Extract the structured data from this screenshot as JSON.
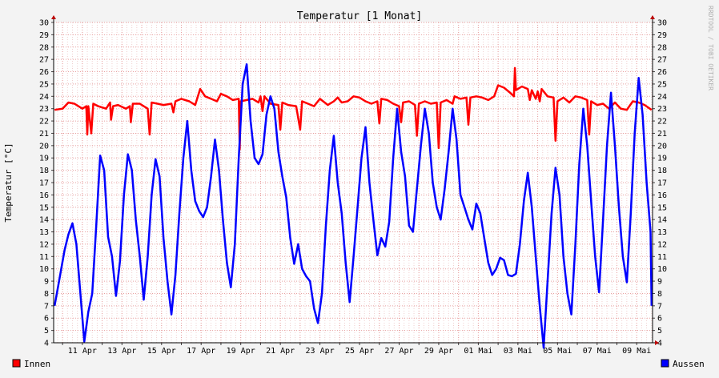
{
  "chart_data": {
    "type": "line",
    "title": "Temperatur [1 Monat]",
    "ylabel": "Temperatur [°C]",
    "xlabel": "",
    "ylim": [
      4,
      30
    ],
    "yticks": [
      4,
      5,
      6,
      7,
      8,
      9,
      10,
      11,
      12,
      13,
      14,
      15,
      16,
      17,
      18,
      19,
      20,
      21,
      22,
      23,
      24,
      25,
      26,
      27,
      28,
      29,
      30
    ],
    "xlim": [
      9.55,
      39.8
    ],
    "xticks": [
      {
        "x": 11,
        "label": "11 Apr"
      },
      {
        "x": 13,
        "label": "13 Apr"
      },
      {
        "x": 15,
        "label": "15 Apr"
      },
      {
        "x": 17,
        "label": "17 Apr"
      },
      {
        "x": 19,
        "label": "19 Apr"
      },
      {
        "x": 21,
        "label": "21 Apr"
      },
      {
        "x": 23,
        "label": "23 Apr"
      },
      {
        "x": 25,
        "label": "25 Apr"
      },
      {
        "x": 27,
        "label": "27 Apr"
      },
      {
        "x": 29,
        "label": "29 Apr"
      },
      {
        "x": 31,
        "label": "01 Mai"
      },
      {
        "x": 33,
        "label": "03 Mai"
      },
      {
        "x": 35,
        "label": "05 Mai"
      },
      {
        "x": 37,
        "label": "07 Mai"
      },
      {
        "x": 39,
        "label": "09 Mai"
      }
    ],
    "grid": true,
    "legend_position": "bottom",
    "credit": "RRDTOOL / TOBI OETIKER",
    "colors": {
      "background": "#f3f3f3",
      "plot": "#ffffff",
      "grid": "#e8a0a0",
      "innen": "#ff0000",
      "aussen": "#0000ff"
    },
    "series": [
      {
        "name": "Innen",
        "color": "#ff0000",
        "points": [
          [
            9.6,
            22.9
          ],
          [
            10.0,
            23.0
          ],
          [
            10.3,
            23.5
          ],
          [
            10.6,
            23.4
          ],
          [
            11.0,
            23.0
          ],
          [
            11.2,
            23.2
          ],
          [
            11.25,
            20.9
          ],
          [
            11.3,
            23.2
          ],
          [
            11.45,
            21.0
          ],
          [
            11.55,
            23.4
          ],
          [
            11.8,
            23.2
          ],
          [
            12.2,
            23.0
          ],
          [
            12.4,
            23.5
          ],
          [
            12.45,
            22.1
          ],
          [
            12.55,
            23.2
          ],
          [
            12.8,
            23.3
          ],
          [
            13.2,
            23.0
          ],
          [
            13.4,
            23.2
          ],
          [
            13.45,
            21.9
          ],
          [
            13.55,
            23.4
          ],
          [
            13.9,
            23.4
          ],
          [
            14.3,
            23.0
          ],
          [
            14.4,
            20.9
          ],
          [
            14.5,
            23.5
          ],
          [
            14.8,
            23.4
          ],
          [
            15.1,
            23.3
          ],
          [
            15.5,
            23.4
          ],
          [
            15.6,
            22.7
          ],
          [
            15.7,
            23.6
          ],
          [
            16.0,
            23.8
          ],
          [
            16.4,
            23.6
          ],
          [
            16.7,
            23.3
          ],
          [
            16.95,
            24.6
          ],
          [
            17.2,
            24.0
          ],
          [
            17.5,
            23.8
          ],
          [
            17.8,
            23.6
          ],
          [
            18.0,
            24.2
          ],
          [
            18.3,
            24.0
          ],
          [
            18.6,
            23.7
          ],
          [
            18.9,
            23.8
          ],
          [
            18.95,
            19.7
          ],
          [
            19.0,
            23.6
          ],
          [
            19.3,
            23.7
          ],
          [
            19.6,
            23.8
          ],
          [
            19.9,
            23.5
          ],
          [
            20.0,
            24.0
          ],
          [
            20.1,
            22.8
          ],
          [
            20.2,
            24.0
          ],
          [
            20.5,
            23.4
          ],
          [
            20.9,
            23.3
          ],
          [
            21.0,
            21.3
          ],
          [
            21.1,
            23.5
          ],
          [
            21.4,
            23.3
          ],
          [
            21.8,
            23.2
          ],
          [
            22.0,
            21.3
          ],
          [
            22.1,
            23.6
          ],
          [
            22.4,
            23.4
          ],
          [
            22.7,
            23.2
          ],
          [
            23.0,
            23.8
          ],
          [
            23.4,
            23.3
          ],
          [
            23.7,
            23.6
          ],
          [
            23.9,
            23.9
          ],
          [
            24.1,
            23.5
          ],
          [
            24.4,
            23.6
          ],
          [
            24.7,
            24.0
          ],
          [
            25.0,
            23.9
          ],
          [
            25.3,
            23.6
          ],
          [
            25.6,
            23.4
          ],
          [
            25.9,
            23.6
          ],
          [
            26.0,
            21.8
          ],
          [
            26.1,
            23.8
          ],
          [
            26.4,
            23.7
          ],
          [
            26.7,
            23.4
          ],
          [
            27.0,
            23.2
          ],
          [
            27.1,
            21.9
          ],
          [
            27.2,
            23.5
          ],
          [
            27.5,
            23.6
          ],
          [
            27.8,
            23.3
          ],
          [
            27.9,
            20.8
          ],
          [
            28.0,
            23.4
          ],
          [
            28.3,
            23.6
          ],
          [
            28.6,
            23.4
          ],
          [
            28.9,
            23.5
          ],
          [
            29.0,
            19.8
          ],
          [
            29.1,
            23.5
          ],
          [
            29.4,
            23.7
          ],
          [
            29.7,
            23.4
          ],
          [
            29.8,
            24.0
          ],
          [
            30.1,
            23.8
          ],
          [
            30.4,
            23.9
          ],
          [
            30.5,
            21.7
          ],
          [
            30.6,
            23.9
          ],
          [
            30.9,
            24.0
          ],
          [
            31.2,
            23.9
          ],
          [
            31.5,
            23.7
          ],
          [
            31.8,
            24.0
          ],
          [
            32.0,
            24.9
          ],
          [
            32.3,
            24.7
          ],
          [
            32.6,
            24.3
          ],
          [
            32.8,
            24.0
          ],
          [
            32.85,
            26.3
          ],
          [
            32.9,
            24.5
          ],
          [
            33.2,
            24.8
          ],
          [
            33.5,
            24.6
          ],
          [
            33.6,
            23.7
          ],
          [
            33.7,
            24.5
          ],
          [
            33.9,
            23.8
          ],
          [
            34.0,
            24.4
          ],
          [
            34.1,
            23.6
          ],
          [
            34.2,
            24.6
          ],
          [
            34.5,
            24.0
          ],
          [
            34.8,
            23.9
          ],
          [
            34.9,
            20.4
          ],
          [
            35.0,
            23.6
          ],
          [
            35.3,
            23.9
          ],
          [
            35.6,
            23.5
          ],
          [
            35.9,
            24.0
          ],
          [
            36.2,
            23.9
          ],
          [
            36.5,
            23.7
          ],
          [
            36.6,
            20.9
          ],
          [
            36.7,
            23.6
          ],
          [
            37.0,
            23.3
          ],
          [
            37.3,
            23.4
          ],
          [
            37.6,
            23.0
          ],
          [
            37.9,
            23.5
          ],
          [
            38.2,
            23.0
          ],
          [
            38.5,
            22.9
          ],
          [
            38.8,
            23.6
          ],
          [
            39.1,
            23.5
          ],
          [
            39.4,
            23.3
          ],
          [
            39.75,
            22.9
          ]
        ]
      },
      {
        "name": "Aussen",
        "color": "#0000ff",
        "points": [
          [
            9.6,
            7.0
          ],
          [
            9.8,
            8.8
          ],
          [
            10.1,
            11.5
          ],
          [
            10.3,
            12.8
          ],
          [
            10.5,
            13.7
          ],
          [
            10.7,
            12.0
          ],
          [
            10.9,
            8.0
          ],
          [
            11.1,
            4.1
          ],
          [
            11.3,
            6.5
          ],
          [
            11.5,
            8.0
          ],
          [
            11.7,
            13.5
          ],
          [
            11.9,
            19.2
          ],
          [
            12.1,
            18.0
          ],
          [
            12.3,
            12.6
          ],
          [
            12.5,
            11.0
          ],
          [
            12.7,
            7.8
          ],
          [
            12.9,
            10.6
          ],
          [
            13.1,
            16.0
          ],
          [
            13.3,
            19.3
          ],
          [
            13.5,
            18.0
          ],
          [
            13.7,
            14.0
          ],
          [
            13.9,
            11.0
          ],
          [
            14.1,
            7.5
          ],
          [
            14.3,
            11.0
          ],
          [
            14.5,
            16.0
          ],
          [
            14.7,
            18.9
          ],
          [
            14.9,
            17.5
          ],
          [
            15.1,
            12.5
          ],
          [
            15.3,
            9.0
          ],
          [
            15.5,
            6.3
          ],
          [
            15.7,
            9.5
          ],
          [
            15.9,
            14.5
          ],
          [
            16.1,
            19.0
          ],
          [
            16.3,
            22.0
          ],
          [
            16.5,
            18.0
          ],
          [
            16.7,
            15.5
          ],
          [
            16.9,
            14.7
          ],
          [
            17.1,
            14.2
          ],
          [
            17.3,
            15.0
          ],
          [
            17.5,
            17.5
          ],
          [
            17.7,
            20.5
          ],
          [
            17.9,
            18.0
          ],
          [
            18.1,
            14.0
          ],
          [
            18.3,
            10.5
          ],
          [
            18.5,
            8.5
          ],
          [
            18.7,
            12.0
          ],
          [
            18.9,
            19.0
          ],
          [
            19.1,
            25.0
          ],
          [
            19.3,
            26.6
          ],
          [
            19.5,
            22.0
          ],
          [
            19.7,
            19.0
          ],
          [
            19.9,
            18.5
          ],
          [
            20.1,
            19.3
          ],
          [
            20.3,
            22.5
          ],
          [
            20.5,
            24.0
          ],
          [
            20.7,
            23.0
          ],
          [
            20.9,
            19.5
          ],
          [
            21.1,
            17.5
          ],
          [
            21.3,
            15.8
          ],
          [
            21.5,
            12.5
          ],
          [
            21.7,
            10.4
          ],
          [
            21.9,
            12.0
          ],
          [
            22.1,
            10.0
          ],
          [
            22.3,
            9.4
          ],
          [
            22.5,
            9.0
          ],
          [
            22.7,
            6.8
          ],
          [
            22.9,
            5.6
          ],
          [
            23.1,
            8.0
          ],
          [
            23.3,
            13.5
          ],
          [
            23.5,
            18.0
          ],
          [
            23.7,
            20.8
          ],
          [
            23.9,
            17.0
          ],
          [
            24.1,
            14.5
          ],
          [
            24.3,
            10.5
          ],
          [
            24.5,
            7.3
          ],
          [
            24.7,
            11.0
          ],
          [
            24.9,
            15.0
          ],
          [
            25.1,
            19.0
          ],
          [
            25.3,
            21.5
          ],
          [
            25.5,
            17.0
          ],
          [
            25.7,
            14.0
          ],
          [
            25.9,
            11.1
          ],
          [
            26.1,
            12.5
          ],
          [
            26.3,
            11.8
          ],
          [
            26.5,
            13.8
          ],
          [
            26.7,
            19.0
          ],
          [
            26.9,
            23.0
          ],
          [
            27.1,
            19.5
          ],
          [
            27.3,
            17.5
          ],
          [
            27.5,
            13.5
          ],
          [
            27.7,
            13.0
          ],
          [
            27.9,
            16.5
          ],
          [
            28.1,
            20.0
          ],
          [
            28.3,
            23.0
          ],
          [
            28.5,
            21.0
          ],
          [
            28.7,
            17.0
          ],
          [
            28.9,
            15.0
          ],
          [
            29.1,
            14.0
          ],
          [
            29.3,
            16.5
          ],
          [
            29.5,
            19.5
          ],
          [
            29.7,
            23.0
          ],
          [
            29.9,
            20.5
          ],
          [
            30.1,
            16.0
          ],
          [
            30.3,
            15.0
          ],
          [
            30.5,
            14.0
          ],
          [
            30.7,
            13.2
          ],
          [
            30.9,
            15.3
          ],
          [
            31.1,
            14.5
          ],
          [
            31.3,
            12.5
          ],
          [
            31.5,
            10.5
          ],
          [
            31.7,
            9.5
          ],
          [
            31.9,
            10.0
          ],
          [
            32.1,
            10.9
          ],
          [
            32.3,
            10.7
          ],
          [
            32.5,
            9.5
          ],
          [
            32.7,
            9.4
          ],
          [
            32.9,
            9.6
          ],
          [
            33.1,
            12.0
          ],
          [
            33.3,
            15.5
          ],
          [
            33.5,
            17.8
          ],
          [
            33.7,
            15.0
          ],
          [
            33.9,
            11.0
          ],
          [
            34.1,
            7.0
          ],
          [
            34.3,
            3.6
          ],
          [
            34.5,
            9.0
          ],
          [
            34.7,
            14.5
          ],
          [
            34.9,
            18.2
          ],
          [
            35.1,
            16.0
          ],
          [
            35.3,
            11.0
          ],
          [
            35.5,
            8.0
          ],
          [
            35.7,
            6.3
          ],
          [
            35.9,
            12.0
          ],
          [
            36.1,
            18.5
          ],
          [
            36.3,
            23.0
          ],
          [
            36.5,
            20.0
          ],
          [
            36.7,
            15.5
          ],
          [
            36.9,
            11.0
          ],
          [
            37.1,
            8.1
          ],
          [
            37.3,
            14.0
          ],
          [
            37.5,
            20.0
          ],
          [
            37.7,
            24.3
          ],
          [
            37.9,
            20.0
          ],
          [
            38.1,
            15.0
          ],
          [
            38.3,
            11.0
          ],
          [
            38.5,
            8.9
          ],
          [
            38.7,
            14.5
          ],
          [
            38.9,
            21.0
          ],
          [
            39.1,
            25.5
          ],
          [
            39.3,
            22.5
          ],
          [
            39.5,
            17.0
          ],
          [
            39.7,
            13.0
          ],
          [
            39.75,
            7.0
          ]
        ]
      }
    ],
    "legend": [
      {
        "label": "Innen",
        "color": "#ff0000"
      },
      {
        "label": "Aussen",
        "color": "#0000ff"
      }
    ]
  }
}
